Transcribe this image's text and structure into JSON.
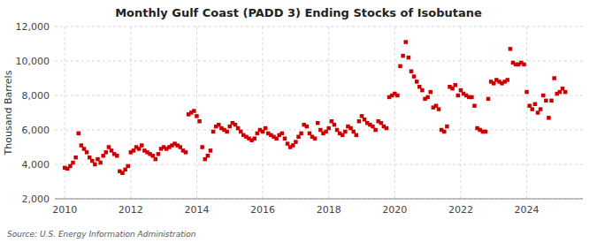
{
  "chart_data": {
    "type": "scatter",
    "title": "Monthly Gulf Coast (PADD 3) Ending Stocks of Isobutane",
    "ylabel": "Thousand Barrels",
    "source": "Source: U.S. Energy Information Administration",
    "color": "#cc0000",
    "marker": "square",
    "grid": true,
    "xlim": [
      2009.7,
      2025.7
    ],
    "xticks": [
      2010,
      2012,
      2014,
      2016,
      2018,
      2020,
      2022,
      2024
    ],
    "ylim": [
      2000,
      12000
    ],
    "yticks": [
      {
        "value": 2000,
        "label": "2,000"
      },
      {
        "value": 4000,
        "label": "4,000"
      },
      {
        "value": 6000,
        "label": "6,000"
      },
      {
        "value": 8000,
        "label": "8,000"
      },
      {
        "value": 10000,
        "label": "10,000"
      },
      {
        "value": 12000,
        "label": "12,000"
      }
    ],
    "x": [
      2010,
      2010.0833333333333,
      2010.1666666666667,
      2010.25,
      2010.3333333333333,
      2010.4166666666667,
      2010.5,
      2010.5833333333333,
      2010.6666666666667,
      2010.75,
      2010.8333333333333,
      2010.9166666666667,
      2011,
      2011.0833333333333,
      2011.1666666666667,
      2011.25,
      2011.3333333333333,
      2011.4166666666667,
      2011.5,
      2011.5833333333333,
      2011.6666666666667,
      2011.75,
      2011.8333333333333,
      2011.9166666666667,
      2012,
      2012.0833333333333,
      2012.1666666666667,
      2012.25,
      2012.3333333333333,
      2012.4166666666667,
      2012.5,
      2012.5833333333333,
      2012.6666666666667,
      2012.75,
      2012.8333333333333,
      2012.9166666666667,
      2013,
      2013.0833333333333,
      2013.1666666666667,
      2013.25,
      2013.3333333333333,
      2013.4166666666667,
      2013.5,
      2013.5833333333333,
      2013.6666666666667,
      2013.75,
      2013.8333333333333,
      2013.9166666666667,
      2014,
      2014.0833333333333,
      2014.1666666666667,
      2014.25,
      2014.3333333333333,
      2014.4166666666667,
      2014.5,
      2014.5833333333333,
      2014.6666666666667,
      2014.75,
      2014.8333333333333,
      2014.9166666666667,
      2015,
      2015.0833333333333,
      2015.1666666666667,
      2015.25,
      2015.3333333333333,
      2015.4166666666667,
      2015.5,
      2015.5833333333333,
      2015.6666666666667,
      2015.75,
      2015.8333333333333,
      2015.9166666666667,
      2016,
      2016.0833333333333,
      2016.1666666666667,
      2016.25,
      2016.3333333333333,
      2016.4166666666667,
      2016.5,
      2016.5833333333333,
      2016.6666666666667,
      2016.75,
      2016.8333333333333,
      2016.9166666666667,
      2017,
      2017.0833333333333,
      2017.1666666666667,
      2017.25,
      2017.3333333333333,
      2017.4166666666667,
      2017.5,
      2017.5833333333333,
      2017.6666666666667,
      2017.75,
      2017.8333333333333,
      2017.9166666666667,
      2018,
      2018.0833333333333,
      2018.1666666666667,
      2018.25,
      2018.3333333333333,
      2018.4166666666667,
      2018.5,
      2018.5833333333333,
      2018.6666666666667,
      2018.75,
      2018.8333333333333,
      2018.9166666666667,
      2019,
      2019.0833333333333,
      2019.1666666666667,
      2019.25,
      2019.3333333333333,
      2019.4166666666667,
      2019.5,
      2019.5833333333333,
      2019.6666666666667,
      2019.75,
      2019.8333333333333,
      2019.9166666666667,
      2020,
      2020.0833333333333,
      2020.1666666666667,
      2020.25,
      2020.3333333333333,
      2020.4166666666667,
      2020.5,
      2020.5833333333333,
      2020.6666666666667,
      2020.75,
      2020.8333333333333,
      2020.9166666666667,
      2021,
      2021.0833333333333,
      2021.1666666666667,
      2021.25,
      2021.3333333333333,
      2021.4166666666667,
      2021.5,
      2021.5833333333333,
      2021.6666666666667,
      2021.75,
      2021.8333333333333,
      2021.9166666666667,
      2022,
      2022.0833333333333,
      2022.1666666666667,
      2022.25,
      2022.3333333333333,
      2022.4166666666667,
      2022.5,
      2022.5833333333333,
      2022.6666666666667,
      2022.75,
      2022.8333333333333,
      2022.9166666666667,
      2023,
      2023.0833333333333,
      2023.1666666666667,
      2023.25,
      2023.3333333333333,
      2023.4166666666667,
      2023.5,
      2023.5833333333333,
      2023.6666666666667,
      2023.75,
      2023.8333333333333,
      2023.9166666666667,
      2024,
      2024.0833333333333,
      2024.1666666666667,
      2024.25,
      2024.3333333333333,
      2024.4166666666667,
      2024.5,
      2024.5833333333333,
      2024.6666666666667,
      2024.75,
      2024.8333333333333,
      2024.9166666666667,
      2025,
      2025.0833333333333,
      2025.1666666666667
    ],
    "values": [
      3800,
      3750,
      3900,
      4100,
      4400,
      5800,
      5100,
      4900,
      4700,
      4400,
      4200,
      4000,
      4300,
      4100,
      4500,
      4700,
      5000,
      4800,
      4600,
      4500,
      3600,
      3500,
      3700,
      3900,
      4700,
      4800,
      5000,
      4900,
      5100,
      4800,
      4700,
      4600,
      4500,
      4300,
      4600,
      4900,
      5000,
      4900,
      5000,
      5100,
      5200,
      5100,
      5000,
      4800,
      4700,
      6900,
      7000,
      7100,
      6800,
      6500,
      5000,
      4300,
      4500,
      4800,
      5900,
      6200,
      6300,
      6100,
      6000,
      5900,
      6200,
      6400,
      6300,
      6100,
      5900,
      5700,
      5600,
      5500,
      5400,
      5500,
      5800,
      6000,
      5900,
      6100,
      5800,
      5700,
      5600,
      5500,
      5700,
      5800,
      5500,
      5200,
      5000,
      5100,
      5300,
      5600,
      5800,
      6300,
      6200,
      5800,
      5600,
      5500,
      6400,
      6000,
      5800,
      5900,
      6100,
      6500,
      6300,
      6000,
      5800,
      5700,
      5900,
      6200,
      6100,
      5900,
      5700,
      6500,
      6800,
      6600,
      6400,
      6300,
      6200,
      6000,
      6500,
      6400,
      6200,
      6100,
      7900,
      8000,
      8100,
      8000,
      9700,
      10300,
      11100,
      10200,
      9400,
      9100,
      8800,
      8500,
      8300,
      7800,
      7900,
      8200,
      7300,
      7400,
      7200,
      6000,
      5900,
      6200,
      8500,
      8400,
      8600,
      8000,
      8300,
      8100,
      8000,
      7900,
      7900,
      7400,
      6100,
      6000,
      5900,
      5900,
      7800,
      8800,
      8700,
      8900,
      8800,
      8700,
      8800,
      8900,
      10700,
      9900,
      9800,
      9800,
      9900,
      9800,
      8200,
      7400,
      7200,
      7500,
      7000,
      7200,
      8000,
      7700,
      6700,
      7700,
      9000,
      8100,
      8200,
      8400,
      8200
    ]
  }
}
